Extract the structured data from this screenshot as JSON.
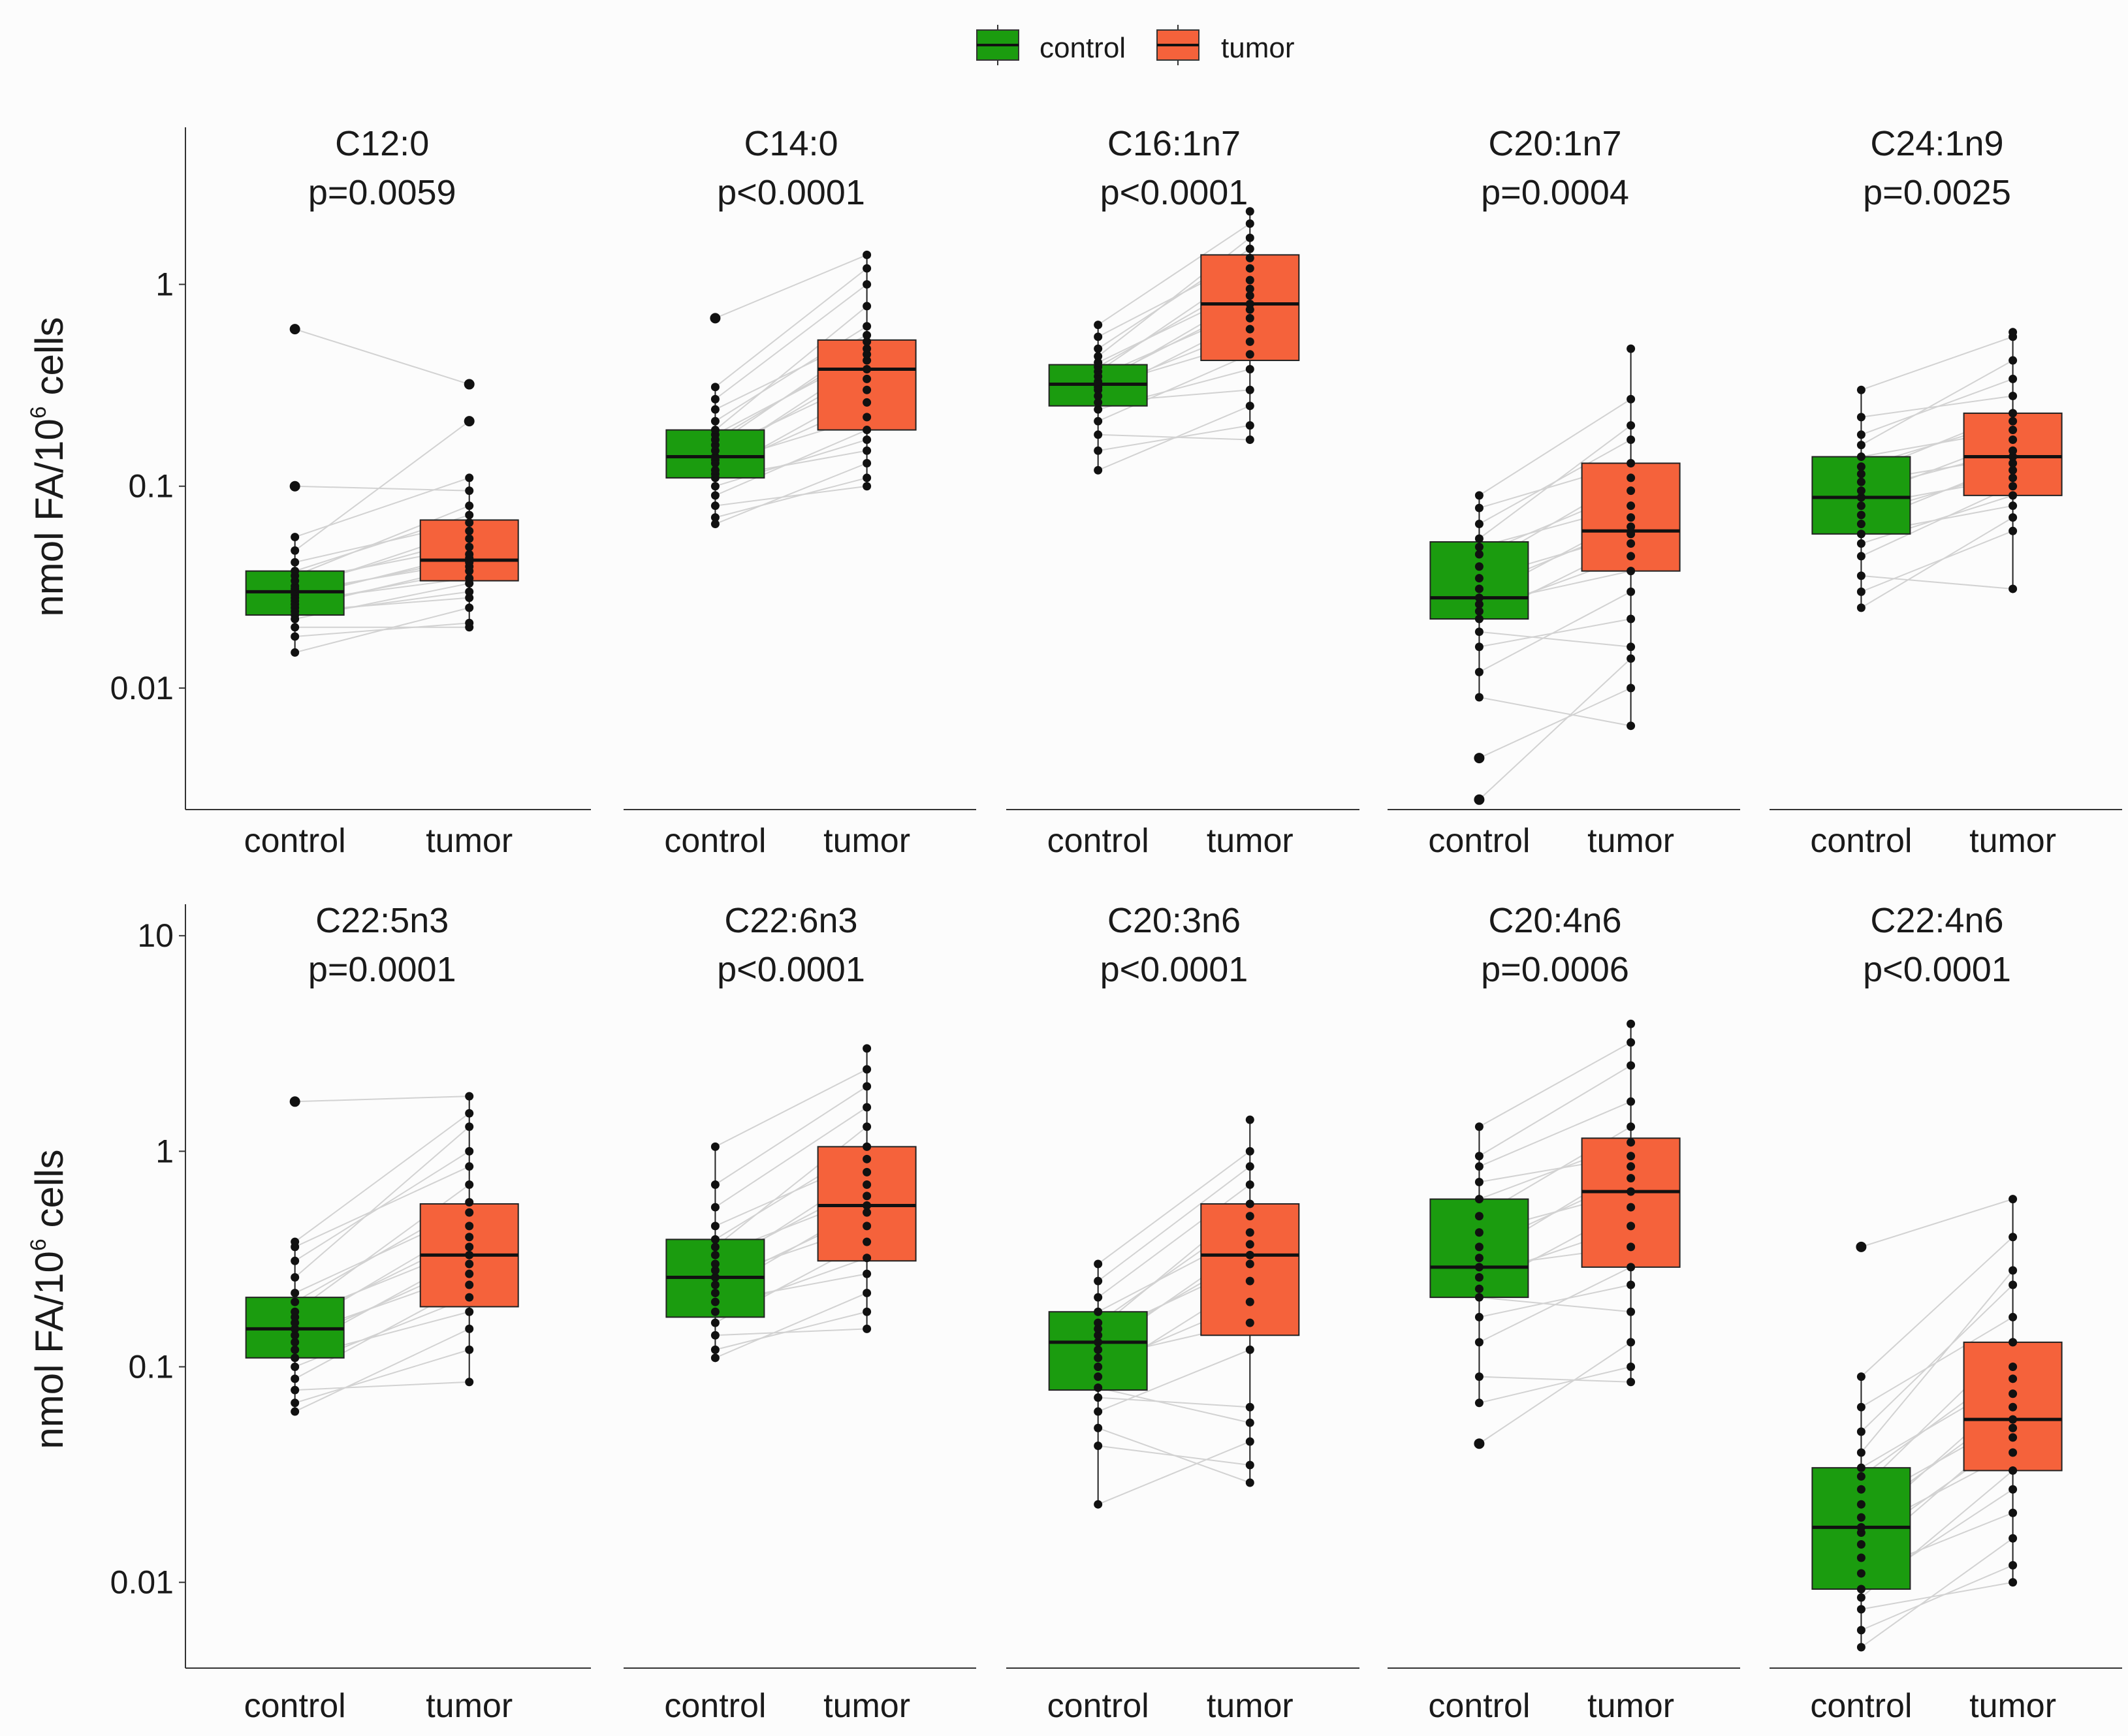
{
  "legend": {
    "items": [
      {
        "label": "control",
        "color": "#1b9c0f"
      },
      {
        "label": "tumor",
        "color": "#f5623b"
      }
    ]
  },
  "y_axis_label_main": "nmol FA/10",
  "y_axis_label_sup": "6",
  "y_axis_label_tail": " cells",
  "chart_data": [
    {
      "type": "box",
      "scale": "log10",
      "row": 0,
      "col": 0,
      "title": "C12:0",
      "pvalue": "p=0.0059",
      "categories": [
        "control",
        "tumor"
      ],
      "ylim": [
        0.0025,
        6
      ],
      "yticks": [
        {
          "value": 0.01,
          "label": "0.01"
        },
        {
          "value": 0.1,
          "label": "0.1"
        },
        {
          "value": 1,
          "label": "1"
        }
      ],
      "series": [
        {
          "name": "control",
          "color": "#1b9c0f",
          "q1": 0.023,
          "median": 0.03,
          "q3": 0.038,
          "whisker_low": 0.015,
          "whisker_high": 0.056,
          "points": [
            0.015,
            0.018,
            0.02,
            0.022,
            0.023,
            0.024,
            0.025,
            0.026,
            0.027,
            0.028,
            0.029,
            0.03,
            0.031,
            0.032,
            0.034,
            0.036,
            0.038,
            0.042,
            0.048,
            0.056,
            0.1,
            0.6
          ]
        },
        {
          "name": "tumor",
          "color": "#f5623b",
          "q1": 0.034,
          "median": 0.043,
          "q3": 0.068,
          "whisker_low": 0.02,
          "whisker_high": 0.11,
          "points": [
            0.02,
            0.021,
            0.025,
            0.028,
            0.03,
            0.033,
            0.035,
            0.038,
            0.04,
            0.042,
            0.044,
            0.046,
            0.05,
            0.055,
            0.06,
            0.066,
            0.072,
            0.08,
            0.095,
            0.11,
            0.21,
            0.32
          ]
        }
      ]
    },
    {
      "type": "box",
      "scale": "log10",
      "row": 0,
      "col": 1,
      "title": "C14:0",
      "pvalue": "p<0.0001",
      "categories": [
        "control",
        "tumor"
      ],
      "ylim": [
        0.0025,
        6
      ],
      "yticks": [],
      "series": [
        {
          "name": "control",
          "color": "#1b9c0f",
          "q1": 0.11,
          "median": 0.14,
          "q3": 0.19,
          "whisker_low": 0.065,
          "whisker_high": 0.31,
          "points": [
            0.065,
            0.07,
            0.08,
            0.09,
            0.1,
            0.11,
            0.115,
            0.12,
            0.13,
            0.135,
            0.14,
            0.15,
            0.16,
            0.17,
            0.18,
            0.19,
            0.21,
            0.24,
            0.27,
            0.31,
            0.68
          ]
        },
        {
          "name": "tumor",
          "color": "#f5623b",
          "q1": 0.19,
          "median": 0.38,
          "q3": 0.53,
          "whisker_low": 0.1,
          "whisker_high": 1.4,
          "points": [
            0.1,
            0.11,
            0.13,
            0.15,
            0.17,
            0.19,
            0.22,
            0.26,
            0.3,
            0.34,
            0.38,
            0.42,
            0.45,
            0.48,
            0.52,
            0.56,
            0.62,
            0.78,
            1.0,
            1.2,
            1.4
          ]
        }
      ]
    },
    {
      "type": "box",
      "scale": "log10",
      "row": 0,
      "col": 2,
      "title": "C16:1n7",
      "pvalue": "p<0.0001",
      "categories": [
        "control",
        "tumor"
      ],
      "ylim": [
        0.0025,
        6
      ],
      "yticks": [],
      "series": [
        {
          "name": "control",
          "color": "#1b9c0f",
          "q1": 0.25,
          "median": 0.32,
          "q3": 0.4,
          "whisker_low": 0.12,
          "whisker_high": 0.63,
          "points": [
            0.12,
            0.15,
            0.18,
            0.21,
            0.24,
            0.26,
            0.28,
            0.3,
            0.31,
            0.32,
            0.33,
            0.35,
            0.37,
            0.39,
            0.41,
            0.44,
            0.48,
            0.55,
            0.63
          ]
        },
        {
          "name": "tumor",
          "color": "#f5623b",
          "q1": 0.42,
          "median": 0.8,
          "q3": 1.4,
          "whisker_low": 0.17,
          "whisker_high": 2.3,
          "points": [
            0.17,
            0.2,
            0.25,
            0.3,
            0.38,
            0.45,
            0.52,
            0.6,
            0.68,
            0.75,
            0.8,
            0.88,
            0.95,
            1.05,
            1.2,
            1.35,
            1.5,
            1.7,
            2.0,
            2.3
          ]
        }
      ]
    },
    {
      "type": "box",
      "scale": "log10",
      "row": 0,
      "col": 3,
      "title": "C20:1n7",
      "pvalue": "p=0.0004",
      "categories": [
        "control",
        "tumor"
      ],
      "ylim": [
        0.0025,
        6
      ],
      "yticks": [],
      "series": [
        {
          "name": "control",
          "color": "#1b9c0f",
          "q1": 0.022,
          "median": 0.028,
          "q3": 0.053,
          "whisker_low": 0.009,
          "whisker_high": 0.09,
          "points": [
            0.0028,
            0.0045,
            0.009,
            0.012,
            0.016,
            0.019,
            0.022,
            0.024,
            0.026,
            0.028,
            0.031,
            0.035,
            0.04,
            0.046,
            0.05,
            0.055,
            0.065,
            0.078,
            0.09
          ]
        },
        {
          "name": "tumor",
          "color": "#f5623b",
          "q1": 0.038,
          "median": 0.06,
          "q3": 0.13,
          "whisker_low": 0.0065,
          "whisker_high": 0.48,
          "points": [
            0.0065,
            0.01,
            0.014,
            0.016,
            0.022,
            0.03,
            0.038,
            0.045,
            0.052,
            0.058,
            0.063,
            0.07,
            0.08,
            0.095,
            0.11,
            0.13,
            0.17,
            0.2,
            0.27,
            0.48
          ]
        }
      ]
    },
    {
      "type": "box",
      "scale": "log10",
      "row": 0,
      "col": 4,
      "title": "C24:1n9",
      "pvalue": "p=0.0025",
      "categories": [
        "control",
        "tumor"
      ],
      "ylim": [
        0.0025,
        6
      ],
      "yticks": [],
      "series": [
        {
          "name": "control",
          "color": "#1b9c0f",
          "q1": 0.058,
          "median": 0.088,
          "q3": 0.14,
          "whisker_low": 0.025,
          "whisker_high": 0.3,
          "points": [
            0.025,
            0.03,
            0.036,
            0.045,
            0.052,
            0.058,
            0.065,
            0.072,
            0.08,
            0.088,
            0.095,
            0.105,
            0.115,
            0.125,
            0.14,
            0.16,
            0.18,
            0.22,
            0.3
          ]
        },
        {
          "name": "tumor",
          "color": "#f5623b",
          "q1": 0.09,
          "median": 0.14,
          "q3": 0.23,
          "whisker_low": 0.031,
          "whisker_high": 0.58,
          "points": [
            0.031,
            0.06,
            0.07,
            0.08,
            0.09,
            0.1,
            0.11,
            0.12,
            0.13,
            0.14,
            0.15,
            0.17,
            0.19,
            0.21,
            0.23,
            0.28,
            0.34,
            0.42,
            0.55,
            0.58
          ]
        }
      ]
    },
    {
      "type": "box",
      "scale": "log10",
      "row": 1,
      "col": 0,
      "title": "C22:5n3",
      "pvalue": "p=0.0001",
      "categories": [
        "control",
        "tumor"
      ],
      "ylim": [
        0.004,
        14
      ],
      "yticks": [
        {
          "value": 0.01,
          "label": "0.01"
        },
        {
          "value": 0.1,
          "label": "0.1"
        },
        {
          "value": 1,
          "label": "1"
        },
        {
          "value": 10,
          "label": "10"
        }
      ],
      "series": [
        {
          "name": "control",
          "color": "#1b9c0f",
          "q1": 0.11,
          "median": 0.15,
          "q3": 0.21,
          "whisker_low": 0.062,
          "whisker_high": 0.38,
          "points": [
            0.062,
            0.068,
            0.078,
            0.088,
            0.1,
            0.11,
            0.12,
            0.13,
            0.14,
            0.15,
            0.16,
            0.17,
            0.18,
            0.2,
            0.22,
            0.26,
            0.31,
            0.36,
            0.38,
            1.7
          ]
        },
        {
          "name": "tumor",
          "color": "#f5623b",
          "q1": 0.19,
          "median": 0.33,
          "q3": 0.57,
          "whisker_low": 0.085,
          "whisker_high": 1.8,
          "points": [
            0.085,
            0.12,
            0.15,
            0.18,
            0.21,
            0.24,
            0.27,
            0.3,
            0.33,
            0.36,
            0.4,
            0.45,
            0.52,
            0.58,
            0.7,
            0.85,
            1.0,
            1.3,
            1.5,
            1.8
          ]
        }
      ]
    },
    {
      "type": "box",
      "scale": "log10",
      "row": 1,
      "col": 1,
      "title": "C22:6n3",
      "pvalue": "p<0.0001",
      "categories": [
        "control",
        "tumor"
      ],
      "ylim": [
        0.004,
        14
      ],
      "yticks": [],
      "series": [
        {
          "name": "control",
          "color": "#1b9c0f",
          "q1": 0.17,
          "median": 0.26,
          "q3": 0.39,
          "whisker_low": 0.11,
          "whisker_high": 1.05,
          "points": [
            0.11,
            0.12,
            0.14,
            0.16,
            0.18,
            0.2,
            0.22,
            0.24,
            0.26,
            0.28,
            0.3,
            0.33,
            0.36,
            0.39,
            0.45,
            0.55,
            0.7,
            1.05
          ]
        },
        {
          "name": "tumor",
          "color": "#f5623b",
          "q1": 0.31,
          "median": 0.56,
          "q3": 1.05,
          "whisker_low": 0.15,
          "whisker_high": 3.0,
          "points": [
            0.15,
            0.18,
            0.22,
            0.27,
            0.32,
            0.38,
            0.45,
            0.52,
            0.56,
            0.62,
            0.7,
            0.8,
            0.92,
            1.05,
            1.3,
            1.6,
            2.0,
            2.4,
            3.0
          ]
        }
      ]
    },
    {
      "type": "box",
      "scale": "log10",
      "row": 1,
      "col": 2,
      "title": "C20:3n6",
      "pvalue": "p<0.0001",
      "categories": [
        "control",
        "tumor"
      ],
      "ylim": [
        0.004,
        14
      ],
      "yticks": [],
      "series": [
        {
          "name": "control",
          "color": "#1b9c0f",
          "q1": 0.078,
          "median": 0.13,
          "q3": 0.18,
          "whisker_low": 0.023,
          "whisker_high": 0.3,
          "points": [
            0.023,
            0.043,
            0.052,
            0.062,
            0.072,
            0.08,
            0.09,
            0.1,
            0.11,
            0.12,
            0.13,
            0.14,
            0.15,
            0.16,
            0.18,
            0.21,
            0.25,
            0.3
          ]
        },
        {
          "name": "tumor",
          "color": "#f5623b",
          "q1": 0.14,
          "median": 0.33,
          "q3": 0.57,
          "whisker_low": 0.029,
          "whisker_high": 1.4,
          "points": [
            0.029,
            0.035,
            0.045,
            0.055,
            0.065,
            0.12,
            0.16,
            0.2,
            0.25,
            0.3,
            0.33,
            0.37,
            0.42,
            0.5,
            0.57,
            0.7,
            0.85,
            1.0,
            1.4
          ]
        }
      ]
    },
    {
      "type": "box",
      "scale": "log10",
      "row": 1,
      "col": 3,
      "title": "C20:4n6",
      "pvalue": "p=0.0006",
      "categories": [
        "control",
        "tumor"
      ],
      "ylim": [
        0.004,
        14
      ],
      "yticks": [],
      "series": [
        {
          "name": "control",
          "color": "#1b9c0f",
          "q1": 0.21,
          "median": 0.29,
          "q3": 0.6,
          "whisker_low": 0.068,
          "whisker_high": 1.3,
          "points": [
            0.044,
            0.068,
            0.09,
            0.13,
            0.17,
            0.21,
            0.23,
            0.26,
            0.29,
            0.32,
            0.36,
            0.42,
            0.5,
            0.6,
            0.72,
            0.85,
            0.95,
            1.3
          ]
        },
        {
          "name": "tumor",
          "color": "#f5623b",
          "q1": 0.29,
          "median": 0.65,
          "q3": 1.15,
          "whisker_low": 0.085,
          "whisker_high": 3.9,
          "points": [
            0.085,
            0.1,
            0.13,
            0.18,
            0.24,
            0.29,
            0.36,
            0.45,
            0.55,
            0.65,
            0.75,
            0.85,
            0.95,
            1.1,
            1.3,
            1.7,
            2.5,
            3.2,
            3.9
          ]
        }
      ]
    },
    {
      "type": "box",
      "scale": "log10",
      "row": 1,
      "col": 4,
      "title": "C22:4n6",
      "pvalue": "p<0.0001",
      "categories": [
        "control",
        "tumor"
      ],
      "ylim": [
        0.004,
        14
      ],
      "yticks": [],
      "series": [
        {
          "name": "control",
          "color": "#1b9c0f",
          "q1": 0.0093,
          "median": 0.018,
          "q3": 0.034,
          "whisker_low": 0.005,
          "whisker_high": 0.09,
          "points": [
            0.005,
            0.006,
            0.0075,
            0.0085,
            0.0093,
            0.011,
            0.013,
            0.015,
            0.017,
            0.018,
            0.02,
            0.023,
            0.027,
            0.031,
            0.034,
            0.04,
            0.05,
            0.065,
            0.09,
            0.36
          ]
        },
        {
          "name": "tumor",
          "color": "#f5623b",
          "q1": 0.033,
          "median": 0.057,
          "q3": 0.13,
          "whisker_low": 0.01,
          "whisker_high": 0.6,
          "points": [
            0.01,
            0.012,
            0.016,
            0.021,
            0.027,
            0.033,
            0.04,
            0.047,
            0.052,
            0.057,
            0.065,
            0.075,
            0.088,
            0.1,
            0.13,
            0.17,
            0.24,
            0.28,
            0.4,
            0.6
          ]
        }
      ]
    }
  ]
}
